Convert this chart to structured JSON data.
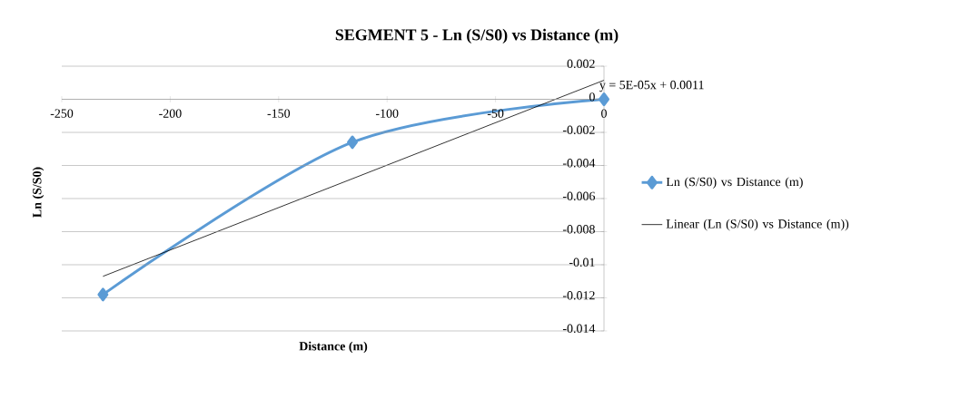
{
  "chart_data": {
    "type": "line",
    "title": "SEGMENT 5 - Ln (S/S0) vs Distance (m)",
    "xlabel": "Distance (m)",
    "ylabel": "Ln (S/S0)",
    "series": [
      {
        "name": "Ln (S/S0) vs Distance (m)",
        "color": "#5b9bd5",
        "x": [
          -231,
          -116,
          0
        ],
        "values": [
          -0.0118,
          -0.0026,
          0
        ],
        "marker": "diamond"
      },
      {
        "name": "Linear (Ln (S/S0) vs Distance (m))",
        "color": "#000000",
        "x": [
          -231,
          0
        ],
        "values": [
          -0.0107,
          0.00115
        ],
        "marker": "none"
      }
    ],
    "xlim": [
      -250,
      0
    ],
    "xticks": [
      -250,
      -200,
      -150,
      -100,
      -50,
      0
    ],
    "ylim": [
      -0.014,
      0.002
    ],
    "yticks": [
      -0.014,
      -0.012,
      -0.01,
      -0.008,
      -0.006,
      -0.004,
      -0.002,
      0,
      0.002
    ],
    "grid": "y",
    "legend": "right",
    "annotations": [
      "y = 5E-05x + 0.0011"
    ]
  }
}
